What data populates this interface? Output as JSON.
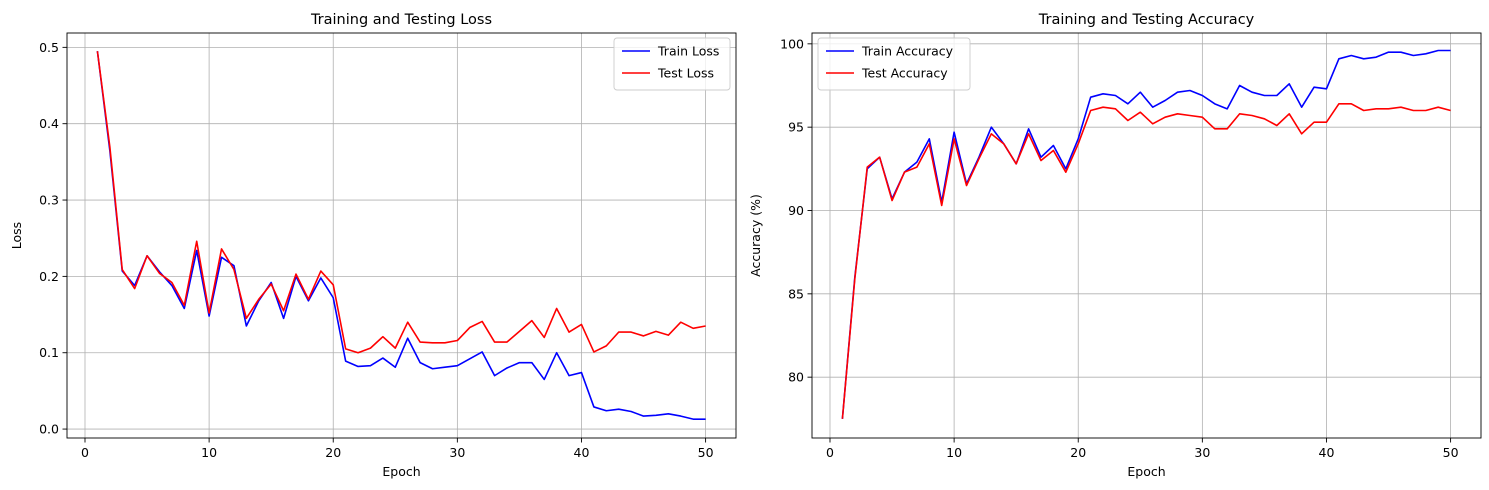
{
  "chart_data": [
    {
      "type": "line",
      "title": "Training and Testing Loss",
      "xlabel": "Epoch",
      "ylabel": "Loss",
      "xlim": [
        -1.45,
        52.45
      ],
      "ylim": [
        -0.0117,
        0.5188
      ],
      "xticks": [
        0,
        10,
        20,
        30,
        40,
        50
      ],
      "yticks": [
        0.0,
        0.1,
        0.2,
        0.3,
        0.4,
        0.5
      ],
      "ytick_labels": [
        "0.0",
        "0.1",
        "0.2",
        "0.3",
        "0.4",
        "0.5"
      ],
      "grid": true,
      "legend_position": "top-right",
      "x": [
        1,
        2,
        3,
        4,
        5,
        6,
        7,
        8,
        9,
        10,
        11,
        12,
        13,
        14,
        15,
        16,
        17,
        18,
        19,
        20,
        21,
        22,
        23,
        24,
        25,
        26,
        27,
        28,
        29,
        30,
        31,
        32,
        33,
        34,
        35,
        36,
        37,
        38,
        39,
        40,
        41,
        42,
        43,
        44,
        45,
        46,
        47,
        48,
        49,
        50
      ],
      "series": [
        {
          "name": "Train Loss",
          "color": "#0000ff",
          "values": [
            0.495,
            0.365,
            0.207,
            0.188,
            0.227,
            0.206,
            0.188,
            0.158,
            0.234,
            0.148,
            0.225,
            0.214,
            0.135,
            0.168,
            0.192,
            0.145,
            0.2,
            0.168,
            0.198,
            0.172,
            0.089,
            0.082,
            0.083,
            0.093,
            0.081,
            0.119,
            0.087,
            0.079,
            0.081,
            0.083,
            0.092,
            0.101,
            0.07,
            0.08,
            0.087,
            0.087,
            0.065,
            0.1,
            0.07,
            0.074,
            0.029,
            0.024,
            0.026,
            0.023,
            0.017,
            0.018,
            0.02,
            0.017,
            0.013,
            0.013
          ]
        },
        {
          "name": "Test Loss",
          "color": "#ff0000",
          "values": [
            0.495,
            0.37,
            0.209,
            0.184,
            0.227,
            0.204,
            0.192,
            0.162,
            0.246,
            0.152,
            0.236,
            0.209,
            0.145,
            0.17,
            0.19,
            0.155,
            0.203,
            0.17,
            0.207,
            0.189,
            0.105,
            0.1,
            0.106,
            0.121,
            0.106,
            0.14,
            0.114,
            0.113,
            0.113,
            0.116,
            0.133,
            0.141,
            0.114,
            0.114,
            0.128,
            0.142,
            0.12,
            0.158,
            0.127,
            0.137,
            0.101,
            0.109,
            0.127,
            0.127,
            0.122,
            0.128,
            0.123,
            0.14,
            0.132,
            0.135
          ]
        }
      ]
    },
    {
      "type": "line",
      "title": "Training and Testing Accuracy",
      "xlabel": "Epoch",
      "ylabel": "Accuracy (%)",
      "xlim": [
        -1.45,
        52.45
      ],
      "ylim": [
        76.35,
        100.65
      ],
      "xticks": [
        0,
        10,
        20,
        30,
        40,
        50
      ],
      "yticks": [
        80,
        85,
        90,
        95,
        100
      ],
      "ytick_labels": [
        "80",
        "85",
        "90",
        "95",
        "100"
      ],
      "grid": true,
      "legend_position": "top-left",
      "x": [
        1,
        2,
        3,
        4,
        5,
        6,
        7,
        8,
        9,
        10,
        11,
        12,
        13,
        14,
        15,
        16,
        17,
        18,
        19,
        20,
        21,
        22,
        23,
        24,
        25,
        26,
        27,
        28,
        29,
        30,
        31,
        32,
        33,
        34,
        35,
        36,
        37,
        38,
        39,
        40,
        41,
        42,
        43,
        44,
        45,
        46,
        47,
        48,
        49,
        50
      ],
      "series": [
        {
          "name": "Train Accuracy",
          "color": "#0000ff",
          "values": [
            77.5,
            86.0,
            92.5,
            93.2,
            90.7,
            92.3,
            92.9,
            94.3,
            90.5,
            94.7,
            91.6,
            93.2,
            95.0,
            94.0,
            92.8,
            94.9,
            93.2,
            93.9,
            92.5,
            94.3,
            96.8,
            97.0,
            96.9,
            96.4,
            97.1,
            96.2,
            96.6,
            97.1,
            97.2,
            96.9,
            96.4,
            96.1,
            97.5,
            97.1,
            96.9,
            96.9,
            97.6,
            96.2,
            97.4,
            97.3,
            99.1,
            99.3,
            99.1,
            99.2,
            99.5,
            99.5,
            99.3,
            99.4,
            99.6,
            99.6
          ]
        },
        {
          "name": "Test Accuracy",
          "color": "#ff0000",
          "values": [
            77.5,
            85.9,
            92.6,
            93.2,
            90.6,
            92.3,
            92.6,
            94.0,
            90.3,
            94.3,
            91.5,
            93.1,
            94.6,
            94.0,
            92.8,
            94.6,
            93.0,
            93.6,
            92.3,
            94.0,
            96.0,
            96.2,
            96.1,
            95.4,
            95.9,
            95.2,
            95.6,
            95.8,
            95.7,
            95.6,
            94.9,
            94.9,
            95.8,
            95.7,
            95.5,
            95.1,
            95.8,
            94.6,
            95.3,
            95.3,
            96.4,
            96.4,
            96.0,
            96.1,
            96.1,
            96.2,
            96.0,
            96.0,
            96.2,
            96.0
          ]
        }
      ]
    }
  ]
}
